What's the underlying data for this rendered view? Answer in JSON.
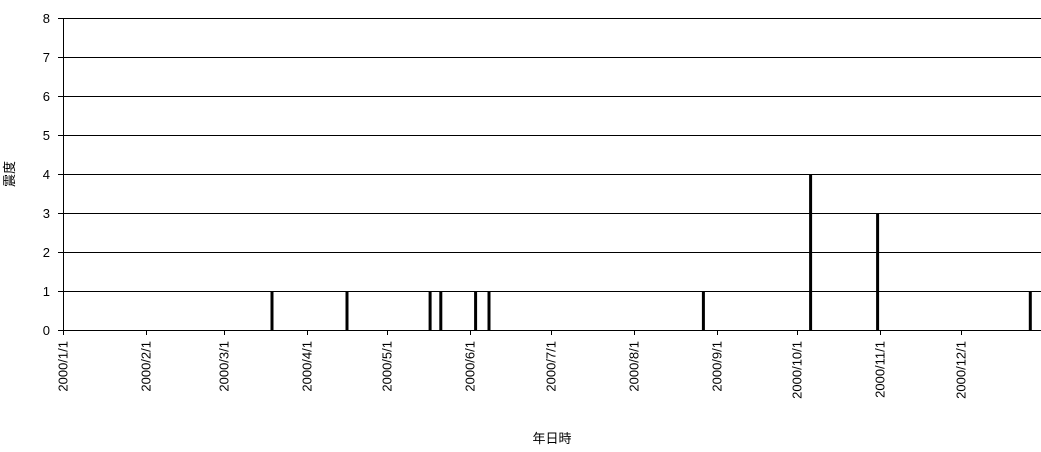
{
  "chart_data": {
    "type": "bar",
    "title": "",
    "xlabel": "年日時",
    "ylabel": "震度",
    "ylim": [
      0,
      8
    ],
    "yticks": [
      "0",
      "1",
      "2",
      "3",
      "4",
      "5",
      "6",
      "7",
      "8"
    ],
    "xlim": [
      "2000-01-01",
      "2000-12-31"
    ],
    "xticks": [
      {
        "date": "2000-01-01",
        "label": "2000/1/1"
      },
      {
        "date": "2000-02-01",
        "label": "2000/2/1"
      },
      {
        "date": "2000-03-01",
        "label": "2000/3/1"
      },
      {
        "date": "2000-04-01",
        "label": "2000/4/1"
      },
      {
        "date": "2000-05-01",
        "label": "2000/5/1"
      },
      {
        "date": "2000-06-01",
        "label": "2000/6/1"
      },
      {
        "date": "2000-07-01",
        "label": "2000/7/1"
      },
      {
        "date": "2000-08-01",
        "label": "2000/8/1"
      },
      {
        "date": "2000-09-01",
        "label": "2000/9/1"
      },
      {
        "date": "2000-10-01",
        "label": "2000/10/1"
      },
      {
        "date": "2000-11-01",
        "label": "2000/11/1"
      },
      {
        "date": "2000-12-01",
        "label": "2000/12/1"
      }
    ],
    "grid": true,
    "series": [
      {
        "color": "#000000",
        "points": [
          {
            "x": "2000-03-19",
            "y": 1
          },
          {
            "x": "2000-04-16",
            "y": 1
          },
          {
            "x": "2000-05-17",
            "y": 1
          },
          {
            "x": "2000-05-21",
            "y": 1
          },
          {
            "x": "2000-06-03",
            "y": 1
          },
          {
            "x": "2000-06-08",
            "y": 1
          },
          {
            "x": "2000-08-27",
            "y": 1
          },
          {
            "x": "2000-10-06",
            "y": 4
          },
          {
            "x": "2000-10-31",
            "y": 3
          },
          {
            "x": "2000-12-27",
            "y": 1
          }
        ]
      }
    ]
  }
}
